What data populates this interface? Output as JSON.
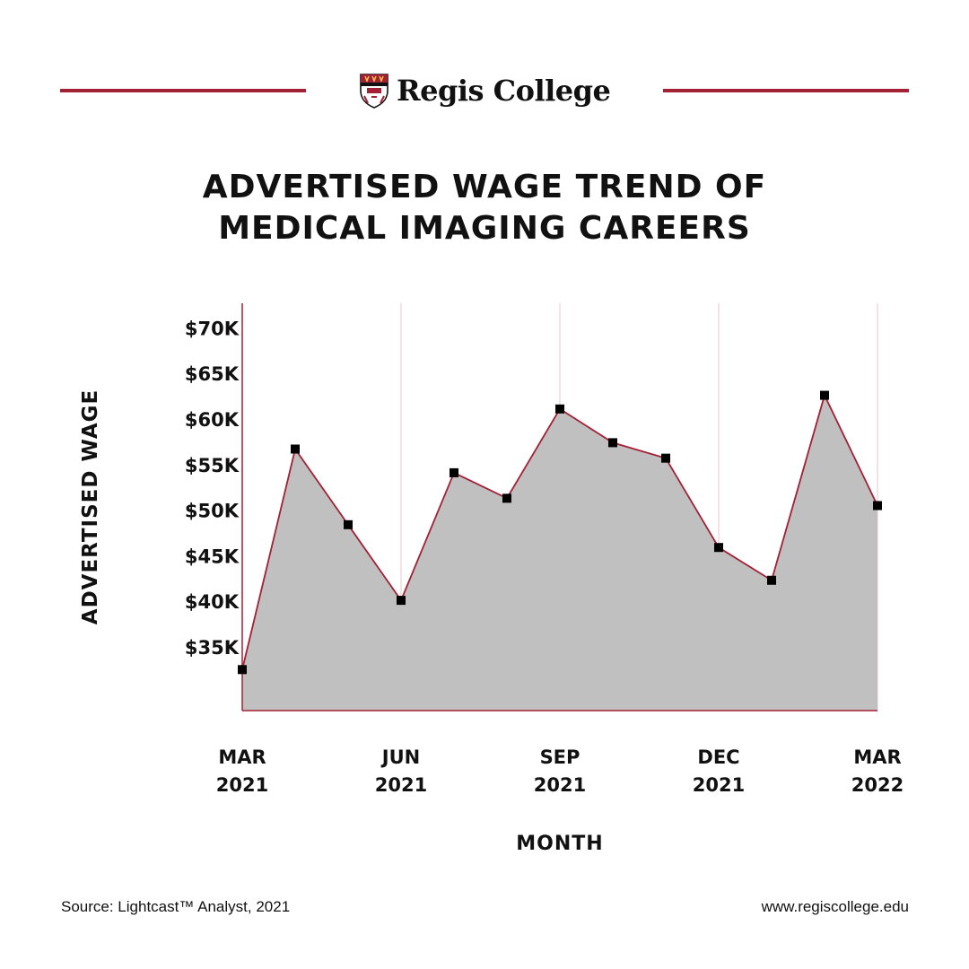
{
  "brand": {
    "name": "Regis College",
    "rule_color": "#a32035",
    "crest_icon": "college-crest-icon"
  },
  "title": {
    "line1": "ADVERTISED WAGE TREND OF",
    "line2": "MEDICAL IMAGING CAREERS"
  },
  "chart_data": {
    "type": "area",
    "title": "ADVERTISED WAGE TREND OF MEDICAL IMAGING CAREERS",
    "xlabel": "MONTH",
    "ylabel": "ADVERTISED WAGE",
    "x": [
      "Mar 2021",
      "Apr 2021",
      "May 2021",
      "Jun 2021",
      "Jul 2021",
      "Aug 2021",
      "Sep 2021",
      "Oct 2021",
      "Nov 2021",
      "Dec 2021",
      "Jan 2022",
      "Feb 2022",
      "Mar 2022"
    ],
    "values": [
      32500,
      56700,
      48400,
      40100,
      54100,
      51300,
      61100,
      57400,
      55700,
      45900,
      42300,
      62600,
      50500
    ],
    "y_ticks": [
      35000,
      40000,
      45000,
      50000,
      55000,
      60000,
      65000,
      70000
    ],
    "y_tick_labels": [
      "$35K",
      "$40K",
      "$45K",
      "$50K",
      "$55K",
      "$60K",
      "$65K",
      "$70K"
    ],
    "x_tick_labels": [
      {
        "index": 0,
        "line1": "MAR",
        "line2": "2021"
      },
      {
        "index": 3,
        "line1": "JUN",
        "line2": "2021"
      },
      {
        "index": 6,
        "line1": "SEP",
        "line2": "2021"
      },
      {
        "index": 9,
        "line1": "DEC",
        "line2": "2021"
      },
      {
        "index": 12,
        "line1": "MAR",
        "line2": "2022"
      }
    ],
    "ylim": [
      28000,
      72700
    ],
    "grid": "vertical at quarterly ticks",
    "colors": {
      "line": "#a32035",
      "fill": "#c0c0c0",
      "marker": "#000000",
      "grid": "#e8c6cc",
      "axis": "#a32035"
    }
  },
  "footer": {
    "source": "Source: Lightcast™ Analyst, 2021",
    "url": "www.regiscollege.edu"
  }
}
